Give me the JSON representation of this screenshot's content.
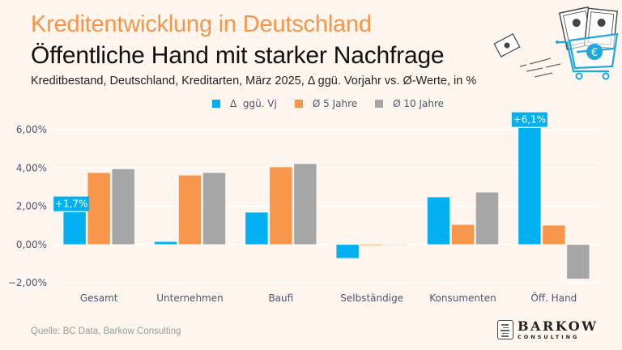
{
  "header": {
    "title": "Kreditentwicklung in Deutschland",
    "headline": "Öffentliche Hand mit starker Nachfrage",
    "subtitle": "Kreditbestand, Deutschland, Kreditarten, März 2025, Δ ggü. Vorjahr vs. Ø-Werte, in %"
  },
  "colors": {
    "title": "#f7964a",
    "series_delta": "#00b0f0",
    "series_5y": "#f7964a",
    "series_10y": "#a6a6a6",
    "axis_text": "#4a5670",
    "gridline": "#ffffff"
  },
  "illustration": {
    "icon": "shopping-cart-with-euro-banknotes-icon"
  },
  "chart_data": {
    "type": "bar",
    "title": "Kreditentwicklung in Deutschland",
    "xlabel": "",
    "ylabel": "",
    "ylim": [
      -2,
      6
    ],
    "yticks": [
      -2,
      0,
      2,
      4,
      6
    ],
    "ytick_labels": [
      "−2,00%",
      "0,00%",
      "2,00%",
      "4,00%",
      "6,00%"
    ],
    "grid": true,
    "legend_position": "top-center",
    "categories": [
      "Gesamt",
      "Unternehmen",
      "Baufi",
      "Selbständige",
      "Konsumenten",
      "Öff. Hand"
    ],
    "series": [
      {
        "name": "Δ  ggü. Vj",
        "color": "#00b0f0",
        "values": [
          1.7,
          0.15,
          1.68,
          -0.72,
          2.48,
          6.1
        ]
      },
      {
        "name": "Ø 5 Jahre",
        "color": "#f7964a",
        "values": [
          3.75,
          3.62,
          4.05,
          -0.05,
          1.04,
          1.0
        ]
      },
      {
        "name": "Ø 10 Jahre",
        "color": "#a6a6a6",
        "values": [
          3.95,
          3.75,
          4.22,
          0.0,
          2.73,
          -1.8
        ]
      }
    ],
    "annotations": [
      {
        "category": "Gesamt",
        "series": "Δ  ggü. Vj",
        "text": "+1,7%"
      },
      {
        "category": "Öff. Hand",
        "series": "Δ  ggü. Vj",
        "text": "+6,1%"
      }
    ]
  },
  "footer": {
    "source": "Quelle: BC Data, Barkow Consulting",
    "logo_main": "BARKOW",
    "logo_sub": "CONSULTING"
  }
}
